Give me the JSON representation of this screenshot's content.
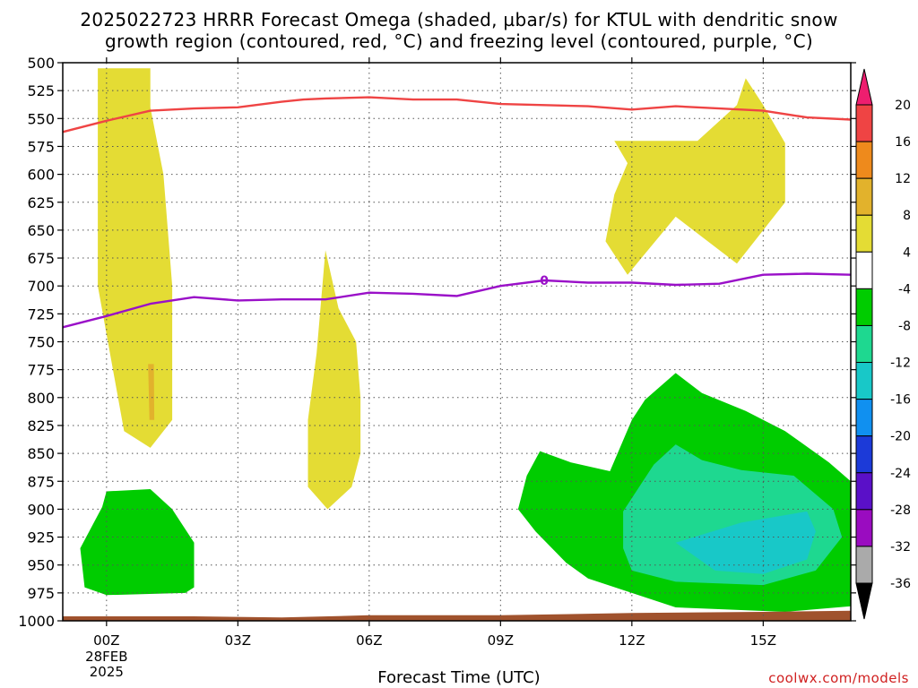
{
  "title_line1": "2025022723 HRRR Forecast Omega (shaded, µbar/s) for KTUL with dendritic snow",
  "title_line2": "growth region (contoured, red, °C) and freezing level (contoured, purple, °C)",
  "credit": "coolwx.com/models",
  "chart_data": {
    "type": "contour",
    "xlabel": "Forecast Time (UTC)",
    "ylabel": "",
    "x_range_hours": [
      -1,
      17
    ],
    "x_ticks": [
      {
        "hour": 0,
        "label": "00Z",
        "sub": [
          "28FEB",
          "2025"
        ]
      },
      {
        "hour": 3,
        "label": "03Z"
      },
      {
        "hour": 6,
        "label": "06Z"
      },
      {
        "hour": 9,
        "label": "09Z"
      },
      {
        "hour": 12,
        "label": "12Z"
      },
      {
        "hour": 15,
        "label": "15Z"
      }
    ],
    "y_range_mb": [
      1000,
      500
    ],
    "y_ticks": [
      500,
      525,
      550,
      575,
      600,
      625,
      650,
      675,
      700,
      725,
      750,
      775,
      800,
      825,
      850,
      875,
      900,
      925,
      950,
      975,
      1000
    ],
    "grid": true,
    "colorbar": {
      "labels": [
        "20",
        "16",
        "12",
        "8",
        "4",
        "-4",
        "-8",
        "-12",
        "-16",
        "-20",
        "-24",
        "-28",
        "-32",
        "-36"
      ],
      "colors": [
        "#ee1e6f",
        "#ef4444",
        "#ee8a1c",
        "#e2b22c",
        "#e4dc34",
        "#ffffff",
        "#00cc00",
        "#1ed890",
        "#18c8c8",
        "#1090f0",
        "#1c3ad8",
        "#5a10c8",
        "#9a0cc0",
        "#aaaaaa",
        "#000000"
      ]
    },
    "shaded_regions": [
      {
        "name": "omega-positive-a",
        "level": "4 to 8",
        "color": "#e4dc34",
        "points": [
          [
            -0.2,
            505
          ],
          [
            1.0,
            505
          ],
          [
            1.0,
            540
          ],
          [
            1.3,
            600
          ],
          [
            1.5,
            700
          ],
          [
            1.5,
            820
          ],
          [
            1.0,
            845
          ],
          [
            0.4,
            830
          ],
          [
            -0.2,
            700
          ]
        ]
      },
      {
        "name": "omega-positive-b",
        "level": "4 to 8",
        "color": "#e4dc34",
        "points": [
          [
            5.0,
            668
          ],
          [
            5.3,
            720
          ],
          [
            5.7,
            750
          ],
          [
            5.8,
            800
          ],
          [
            5.8,
            850
          ],
          [
            5.6,
            880
          ],
          [
            5.05,
            900
          ],
          [
            4.6,
            880
          ],
          [
            4.6,
            820
          ],
          [
            4.8,
            760
          ]
        ]
      },
      {
        "name": "omega-positive-c",
        "level": "4 to 8",
        "color": "#e4dc34",
        "points": [
          [
            11.6,
            570
          ],
          [
            13.5,
            570
          ],
          [
            14.4,
            538
          ],
          [
            14.6,
            514
          ],
          [
            15.0,
            538
          ],
          [
            15.5,
            572
          ],
          [
            15.5,
            625
          ],
          [
            14.4,
            680
          ],
          [
            13.0,
            638
          ],
          [
            11.9,
            690
          ],
          [
            11.4,
            660
          ],
          [
            11.6,
            618
          ],
          [
            11.9,
            590
          ]
        ]
      },
      {
        "name": "omega-positive-core",
        "level": "8 to 12",
        "color": "#e2b22c",
        "points": [
          [
            0.95,
            770
          ],
          [
            1.08,
            770
          ],
          [
            1.09,
            820
          ],
          [
            0.98,
            820
          ]
        ]
      },
      {
        "name": "omega-negative-a",
        "level": "-4 to -8",
        "color": "#00cc00",
        "points": [
          [
            -0.1,
            898
          ],
          [
            0.0,
            884
          ],
          [
            1.0,
            882
          ],
          [
            1.5,
            900
          ],
          [
            2.0,
            930
          ],
          [
            2.0,
            970
          ],
          [
            1.8,
            975
          ],
          [
            0.0,
            977
          ],
          [
            -0.5,
            970
          ],
          [
            -0.6,
            935
          ]
        ]
      },
      {
        "name": "omega-negative-b",
        "level": "-4 to -8",
        "color": "#00cc00",
        "points": [
          [
            9.9,
            848
          ],
          [
            10.6,
            858
          ],
          [
            11.5,
            866
          ],
          [
            12.0,
            820
          ],
          [
            12.3,
            802
          ],
          [
            13.0,
            778
          ],
          [
            13.6,
            796
          ],
          [
            14.6,
            812
          ],
          [
            15.5,
            830
          ],
          [
            16.5,
            858
          ],
          [
            17.0,
            875
          ],
          [
            17.0,
            987
          ],
          [
            15.5,
            992
          ],
          [
            13.0,
            988
          ],
          [
            12.0,
            975
          ],
          [
            11.0,
            962
          ],
          [
            10.5,
            948
          ],
          [
            9.8,
            920
          ],
          [
            9.4,
            900
          ],
          [
            9.6,
            870
          ]
        ]
      },
      {
        "name": "omega-negative-c",
        "level": "-8 to -12",
        "color": "#1ed890",
        "points": [
          [
            11.8,
            902
          ],
          [
            12.5,
            860
          ],
          [
            13.0,
            842
          ],
          [
            13.6,
            856
          ],
          [
            14.5,
            865
          ],
          [
            15.7,
            870
          ],
          [
            16.6,
            900
          ],
          [
            16.8,
            925
          ],
          [
            16.2,
            955
          ],
          [
            15.0,
            968
          ],
          [
            13.0,
            965
          ],
          [
            12.0,
            955
          ],
          [
            11.8,
            935
          ]
        ]
      },
      {
        "name": "omega-negative-d",
        "level": "-12 to -16",
        "color": "#18c8c8",
        "points": [
          [
            13.0,
            930
          ],
          [
            14.5,
            912
          ],
          [
            16.0,
            902
          ],
          [
            16.2,
            920
          ],
          [
            16.0,
            945
          ],
          [
            15.0,
            958
          ],
          [
            13.9,
            955
          ]
        ]
      }
    ],
    "contours": [
      {
        "name": "dendritic-growth-region",
        "color": "#ef4444",
        "points": [
          [
            -1,
            562
          ],
          [
            0,
            552
          ],
          [
            1,
            543
          ],
          [
            2,
            541
          ],
          [
            3,
            540
          ],
          [
            4,
            535
          ],
          [
            4.5,
            533
          ],
          [
            5,
            532
          ],
          [
            6,
            531
          ],
          [
            7,
            533
          ],
          [
            8,
            533
          ],
          [
            9,
            537
          ],
          [
            10,
            538
          ],
          [
            11,
            539
          ],
          [
            12,
            542
          ],
          [
            13,
            539
          ],
          [
            14,
            541
          ],
          [
            15,
            543
          ],
          [
            16,
            549
          ],
          [
            17,
            551
          ]
        ]
      },
      {
        "name": "freezing-level",
        "color": "#9a10c8",
        "label": "0",
        "points": [
          [
            -1,
            737
          ],
          [
            0,
            727
          ],
          [
            1,
            716
          ],
          [
            2,
            710
          ],
          [
            3,
            713
          ],
          [
            4,
            712
          ],
          [
            5,
            712
          ],
          [
            6,
            706
          ],
          [
            7,
            707
          ],
          [
            8,
            709
          ],
          [
            9,
            700
          ],
          [
            10,
            695
          ],
          [
            11,
            697
          ],
          [
            12,
            697
          ],
          [
            13,
            699
          ],
          [
            14,
            698
          ],
          [
            15,
            690
          ],
          [
            16,
            689
          ],
          [
            17,
            690
          ]
        ]
      }
    ],
    "terrain": {
      "name": "surface-ground",
      "color": "#a0522d",
      "points": [
        [
          -1,
          996
        ],
        [
          2,
          996
        ],
        [
          4,
          997
        ],
        [
          6,
          995
        ],
        [
          9,
          995
        ],
        [
          12,
          993
        ],
        [
          15,
          992
        ],
        [
          17,
          991
        ]
      ]
    }
  }
}
